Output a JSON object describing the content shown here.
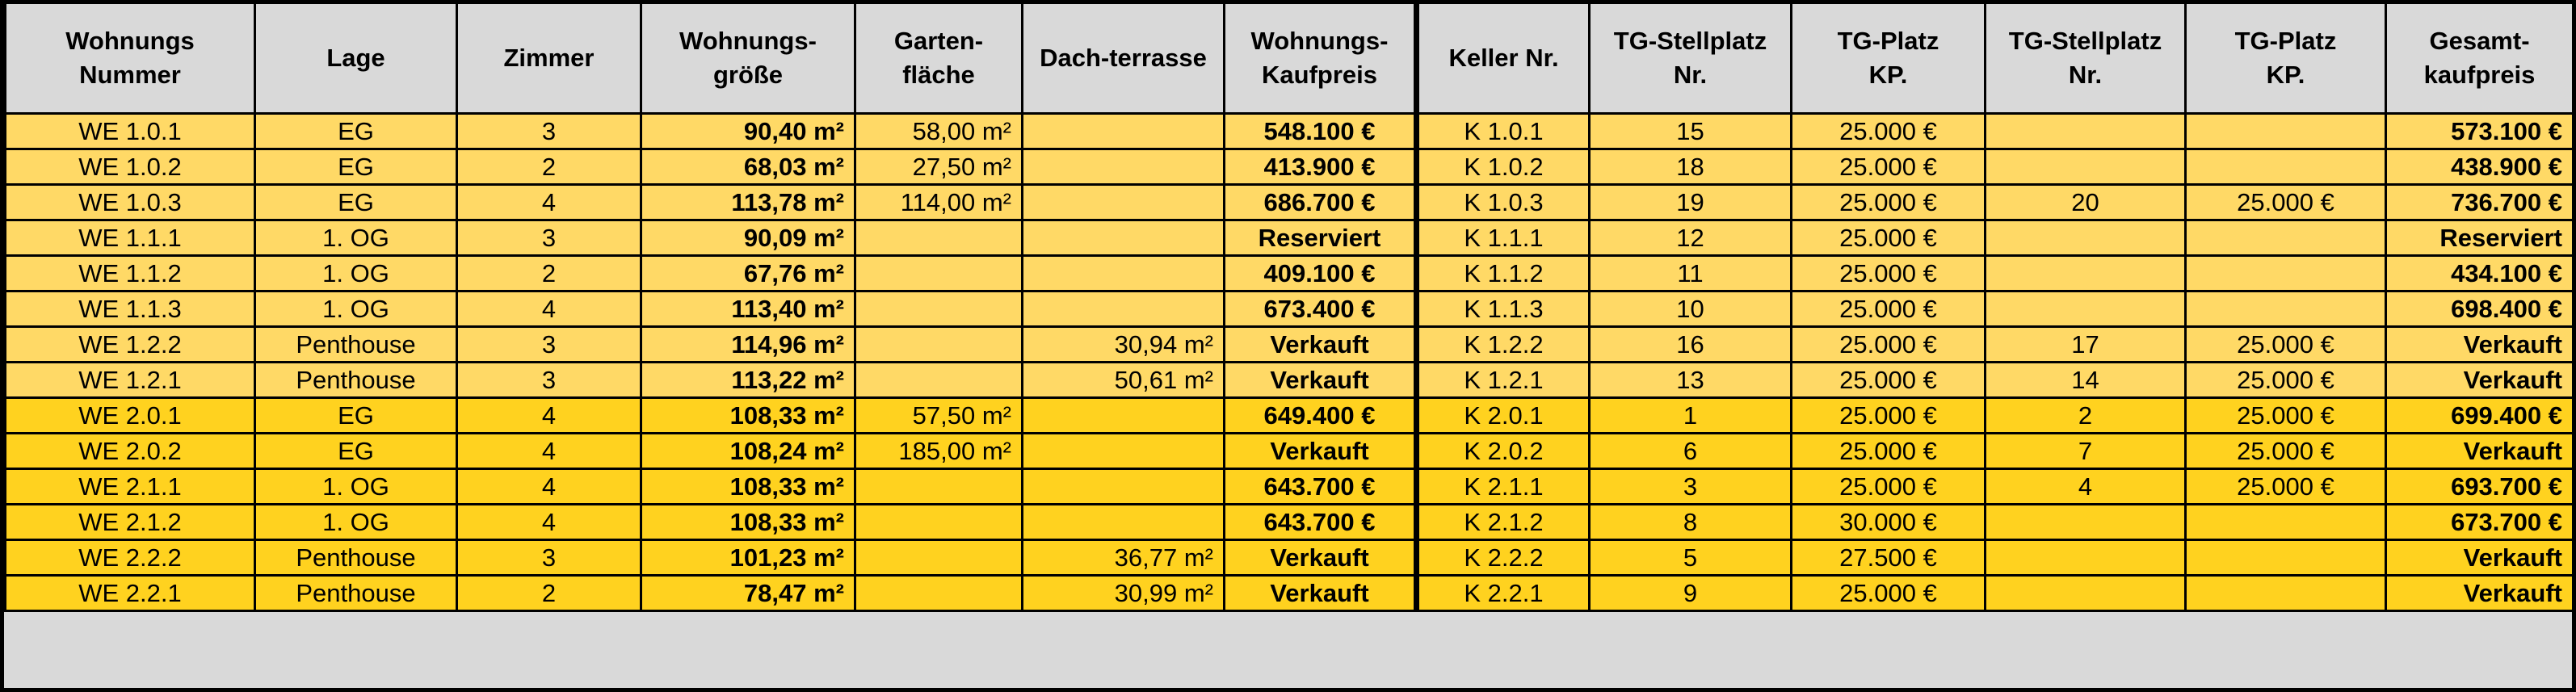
{
  "table": {
    "header": [
      [
        "Wohnungs",
        "Nummer"
      ],
      [
        "Lage"
      ],
      [
        "Zimmer"
      ],
      [
        "Wohnungs-",
        "größe"
      ],
      [
        "Garten-",
        "fläche"
      ],
      [
        "Dach-terrasse"
      ],
      [
        "Wohnungs-",
        "Kaufpreis"
      ],
      [
        "Keller Nr."
      ],
      [
        "TG-Stellplatz",
        "Nr."
      ],
      [
        "TG-Platz",
        "KP."
      ],
      [
        "TG-Stellplatz",
        "Nr."
      ],
      [
        "TG-Platz",
        "KP."
      ],
      [
        "Gesamt-",
        "kaufpreis"
      ]
    ],
    "rows": [
      [
        "WE 1.0.1",
        "EG",
        "3",
        "90,40 m²",
        "58,00 m²",
        null,
        "548.100 €",
        "K 1.0.1",
        "15",
        "25.000 €",
        null,
        null,
        "573.100 €"
      ],
      [
        "WE 1.0.2",
        "EG",
        "2",
        "68,03 m²",
        "27,50 m²",
        null,
        "413.900 €",
        "K 1.0.2",
        "18",
        "25.000 €",
        null,
        null,
        "438.900 €"
      ],
      [
        "WE 1.0.3",
        "EG",
        "4",
        "113,78 m²",
        "114,00 m²",
        null,
        "686.700 €",
        "K 1.0.3",
        "19",
        "25.000 €",
        "20",
        "25.000 €",
        "736.700 €"
      ],
      [
        "WE 1.1.1",
        "1. OG",
        "3",
        "90,09 m²",
        null,
        null,
        "Reserviert",
        "K 1.1.1",
        "12",
        "25.000 €",
        null,
        null,
        "Reserviert"
      ],
      [
        "WE 1.1.2",
        "1. OG",
        "2",
        "67,76 m²",
        null,
        null,
        "409.100 €",
        "K 1.1.2",
        "11",
        "25.000 €",
        null,
        null,
        "434.100 €"
      ],
      [
        "WE 1.1.3",
        "1. OG",
        "4",
        "113,40 m²",
        null,
        null,
        "673.400 €",
        "K 1.1.3",
        "10",
        "25.000 €",
        null,
        null,
        "698.400 €"
      ],
      [
        "WE 1.2.2",
        "Penthouse",
        "3",
        "114,96 m²",
        null,
        "30,94 m²",
        "Verkauft",
        "K 1.2.2",
        "16",
        "25.000 €",
        "17",
        "25.000 €",
        "Verkauft"
      ],
      [
        "WE 1.2.1",
        "Penthouse",
        "3",
        "113,22 m²",
        null,
        "50,61 m²",
        "Verkauft",
        "K 1.2.1",
        "13",
        "25.000 €",
        "14",
        "25.000 €",
        "Verkauft"
      ],
      [
        "WE 2.0.1",
        "EG",
        "4",
        "108,33 m²",
        "57,50 m²",
        null,
        "649.400 €",
        "K 2.0.1",
        "1",
        "25.000 €",
        "2",
        "25.000 €",
        "699.400 €"
      ],
      [
        "WE 2.0.2",
        "EG",
        "4",
        "108,24 m²",
        "185,00 m²",
        null,
        "Verkauft",
        "K 2.0.2",
        "6",
        "25.000 €",
        "7",
        "25.000 €",
        "Verkauft"
      ],
      [
        "WE 2.1.1",
        "1. OG",
        "4",
        "108,33 m²",
        null,
        null,
        "643.700 €",
        "K 2.1.1",
        "3",
        "25.000 €",
        "4",
        "25.000 €",
        "693.700 €"
      ],
      [
        "WE 2.1.2",
        "1. OG",
        "4",
        "108,33 m²",
        null,
        null,
        "643.700 €",
        "K 2.1.2",
        "8",
        "30.000 €",
        null,
        null,
        "673.700 €"
      ],
      [
        "WE 2.2.2",
        "Penthouse",
        "3",
        "101,23 m²",
        null,
        "36,77 m²",
        "Verkauft",
        "K 2.2.2",
        "5",
        "27.500 €",
        null,
        null,
        "Verkauft"
      ],
      [
        "WE 2.2.1",
        "Penthouse",
        "2",
        "78,47 m²",
        null,
        "30,99 m²",
        "Verkauft",
        "K 2.2.1",
        "9",
        "25.000 €",
        null,
        null,
        "Verkauft"
      ]
    ]
  }
}
